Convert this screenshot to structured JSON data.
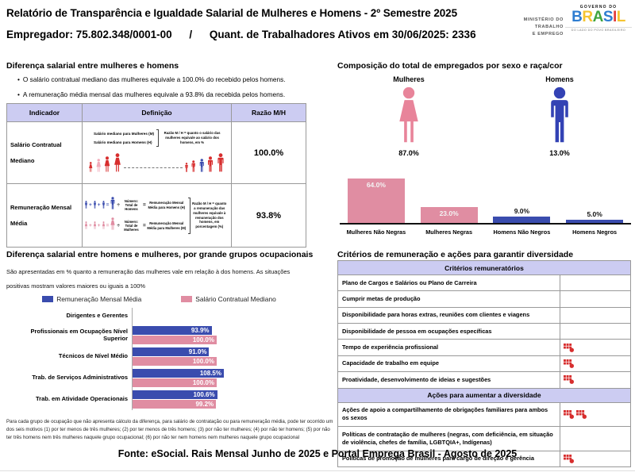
{
  "header": {
    "title": "Relatório de Transparência e Igualdade Salarial de Mulheres e Homens - 2º Semestre 2025",
    "employer": "Empregador: 75.802.348/0001-00",
    "separator": "/",
    "active_workers": "Quant. de Trabalhadores Ativos em 30/06/2025: 2336",
    "ministry_lines": [
      "MINISTÉRIO DO",
      "TRABALHO",
      "E EMPREGO"
    ],
    "gov_logo": {
      "top": "GOVERNO DO",
      "name": "BRASIL",
      "letter_colors": [
        "#2E7DD1",
        "#F5C431",
        "#3FA43F",
        "#2E7DD1",
        "#E23B3B",
        "#F5C431"
      ],
      "tagline": "DO LADO DO POVO BRASILEIRO"
    }
  },
  "salary_diff": {
    "heading": "Diferença salarial entre mulheres e homens",
    "bullets": [
      "O salário contratual mediano das mulheres equivale a 100.0% do recebido pelos homens.",
      "A remuneração média mensal das mulheres equivale a 93.8% da recebida pelos homens."
    ],
    "table": {
      "headers": [
        "Indicador",
        "Definição",
        "Razão M/H"
      ],
      "rows": [
        {
          "indicator": "Salário Contratual Mediano",
          "ratio": "100.0%",
          "def": {
            "line1": "Salário mediano para Mulheres (M)",
            "line2": "Salário mediano para Homens (H)",
            "note": "Razão M / H = quanto o salário das mulheres equivale ao salário dos homens, em %"
          }
        },
        {
          "indicator": "Remuneração Mensal Média",
          "ratio": "93.8%",
          "def": {
            "men_num": "Número: Total de Homens",
            "men_result": "Remuneração Mensal Média para Homens (H)",
            "women_num": "Número: Total de Mulheres",
            "women_result": "Remuneração Mensal Média para Mulheres (M)",
            "note": "Razão M / H = quanto a remuneração das mulheres equivale à remuneração dos homens, em porcentagem (%)"
          }
        }
      ]
    }
  },
  "composition": {
    "heading": "Composição do total de empregados por sexo e raça/cor",
    "women_label": "Mulheres",
    "women_pct": "87.0%",
    "men_label": "Homens",
    "men_pct": "13.0%"
  },
  "occupational": {
    "heading": "Diferença salarial entre homens e mulheres, por grande grupos ocupacionais",
    "subtitle": "São apresentadas em % quanto a remuneração das mulheres vale em relação à dos homens. As situações positivas mostram valores maiores ou iguais a 100%",
    "footnote": "Para cada grupo de ocupação que não apresenta cálculo da diferença, para salário de contratação ou para remuneração média, pode ter ocorrido um dos seis motivos (1) por ter menos de três mulheres; (2) por ter menos de três homens; (3) por não ter mulheres; (4) por não ter homens; (5) por não ter três homens nem três mulheres naquele grupo ocupacional; (6) por não ter nem homens nem mulheres naquele grupo ocupacional"
  },
  "chart_data": [
    {
      "id": "composition-by-sex-race",
      "type": "bar",
      "title": "Composição do total de empregados por sexo e raça/cor",
      "sex_split": {
        "Mulheres": 87.0,
        "Homens": 13.0
      },
      "categories": [
        "Mulheres Não Negras",
        "Mulheres Negras",
        "Homens Não Negros",
        "Homens Negros"
      ],
      "values": [
        64.0,
        23.0,
        9.0,
        5.0
      ],
      "unit": "%",
      "colors": [
        "#E08DA2",
        "#E08DA2",
        "#3A4CAE",
        "#3A4CAE"
      ],
      "ylim": [
        0,
        70
      ],
      "grid": false
    },
    {
      "id": "occupational-pay-gap",
      "type": "bar",
      "orientation": "horizontal",
      "title": "Diferença salarial entre homens e mulheres, por grande grupos ocupacionais",
      "categories": [
        "Dirigentes e Gerentes",
        "Profissionais em Ocupações Nível Superior",
        "Técnicos de Nível Médio",
        "Trab. de Serviços Administrativos",
        "Trab. em Atividade Operacionais"
      ],
      "series": [
        {
          "name": "Remuneração Mensal Média",
          "color": "#3A4CAE",
          "values": [
            null,
            93.9,
            91.0,
            108.5,
            100.6
          ]
        },
        {
          "name": "Salário Contratual Mediano",
          "color": "#E08DA2",
          "values": [
            null,
            100.0,
            100.0,
            100.0,
            99.2
          ]
        }
      ],
      "unit": "%",
      "xlim": [
        0,
        115
      ],
      "legend_position": "top",
      "grid": false
    }
  ],
  "criteria": {
    "heading": "Critérios de remuneração e ações para garantir diversidade",
    "sections": [
      {
        "title": "Critérios remuneratórios",
        "rows": [
          {
            "label": "Plano de Cargos e Salários ou Plano de Carreira",
            "icons": 0
          },
          {
            "label": "Cumprir metas de produção",
            "icons": 0
          },
          {
            "label": "Disponibilidade para horas extras, reuniões com clientes e viagens",
            "icons": 0
          },
          {
            "label": "Disponibilidade de pessoa em ocupações específicas",
            "icons": 0
          },
          {
            "label": "Tempo de experiência profissional",
            "icons": 1
          },
          {
            "label": "Capacidade de trabalho em equipe",
            "icons": 1
          },
          {
            "label": "Proatividade, desenvolvimento de ideias e sugestões",
            "icons": 1
          }
        ]
      },
      {
        "title": "Ações para aumentar a diversidade",
        "rows": [
          {
            "label": "Ações de apoio a compartilhamento de obrigações familiares para ambos os sexos",
            "icons": 2
          },
          {
            "label": "Políticas de contratação de mulheres (negras, com deficiência, em situação de violência, chefes de família, LGBTQIA+, Indígenas)",
            "icons": 0
          },
          {
            "label": "Políticas de promoção de mulheres para cargo de direção e gerência",
            "icons": 1
          }
        ]
      }
    ]
  },
  "footer": "Fonte: eSocial. Rais Mensal Junho de 2025 e Portal Emprega Brasil - Agosto de 2025",
  "colors": {
    "pink": "#E08DA2",
    "blue": "#3A4CAE",
    "red": "#D72E2E",
    "light_pink": "#F2ABBA",
    "lavender": "#CCCCF2"
  }
}
